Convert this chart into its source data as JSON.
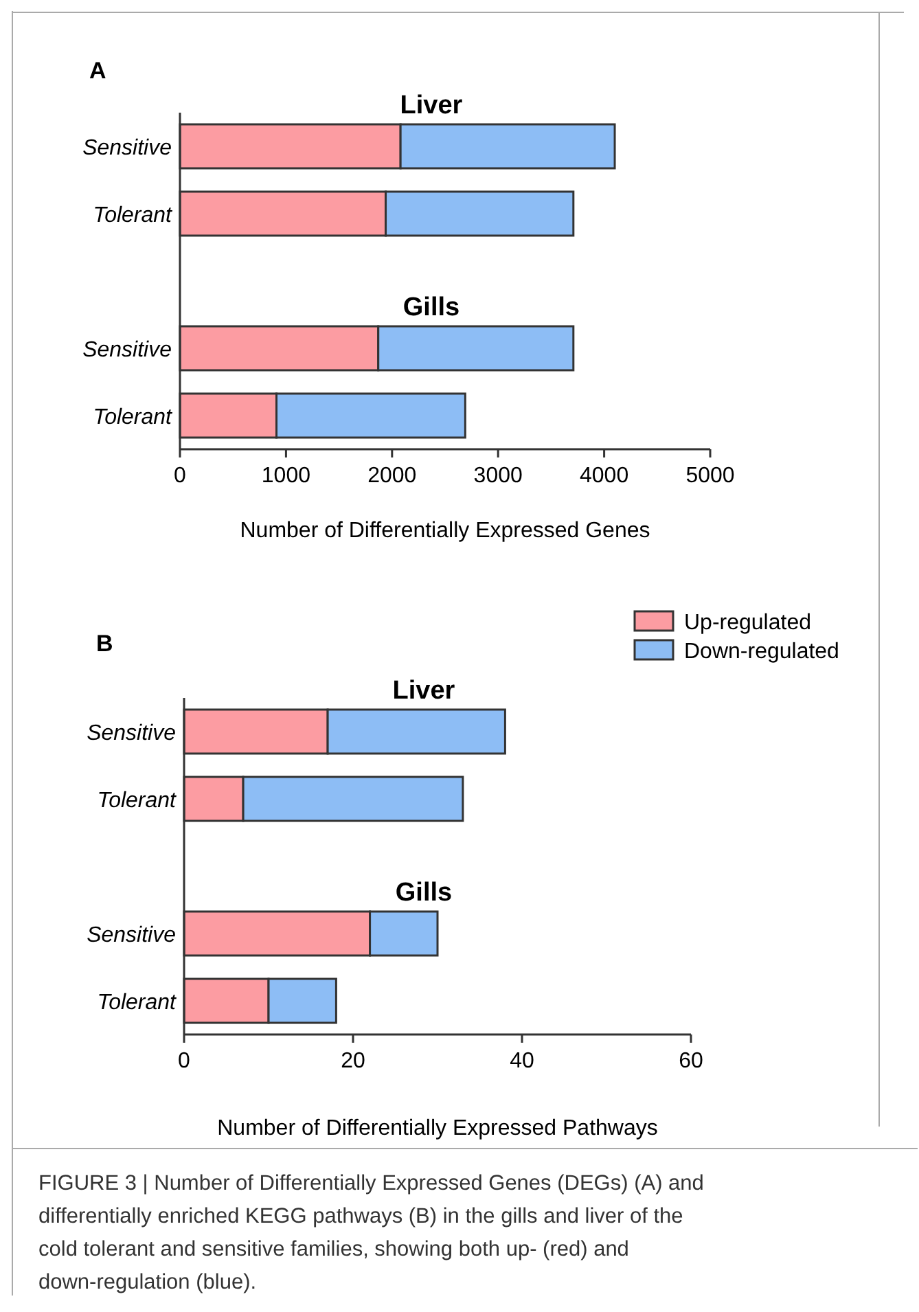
{
  "chart_data": [
    {
      "type": "bar",
      "title": "A",
      "orientation": "horizontal",
      "stacked": true,
      "categories": [
        "Sensitive",
        "Tolerant",
        null,
        "Sensitive",
        "Tolerant"
      ],
      "series": [
        {
          "color": "#fc9ca2",
          "values": [
            2080,
            1940,
            null,
            1870,
            910
          ]
        },
        {
          "color": "#8dbdf5",
          "values": [
            2020,
            1770,
            null,
            1840,
            1780
          ]
        }
      ],
      "xlim": [
        0,
        5000
      ],
      "xticks": [
        0,
        1000,
        2000,
        3000,
        4000,
        5000
      ],
      "xlabel": "Number of Differentially Expressed Genes",
      "annotations": [
        "Liver",
        "Gills"
      ],
      "legend": false,
      "grid": false
    },
    {
      "type": "bar",
      "title": "B",
      "orientation": "horizontal",
      "stacked": true,
      "categories": [
        "Sensitive",
        "Tolerant",
        null,
        "Sensitive",
        "Tolerant"
      ],
      "series": [
        {
          "name": "Up-regulated",
          "color": "#fc9ca2",
          "values": [
            17,
            7,
            null,
            22,
            10
          ]
        },
        {
          "name": "Down-regulated",
          "color": "#8dbdf5",
          "values": [
            21,
            26,
            null,
            8,
            8
          ]
        }
      ],
      "xlim": [
        0,
        60
      ],
      "xticks": [
        0,
        20,
        40,
        60
      ],
      "xlabel": "Number of Differentially Expressed Pathways",
      "annotations": [
        "Liver",
        "Gills",
        "FIGURE 3 | Number of Differentially Expressed Genes (DEGs) (A) and differentially enriched KEGG pathways (B) in the gills and liver of the cold tolerant and sensitive families, showing both up- (red) and down-regulation (blue)."
      ],
      "legend": "top right",
      "grid": false
    }
  ]
}
